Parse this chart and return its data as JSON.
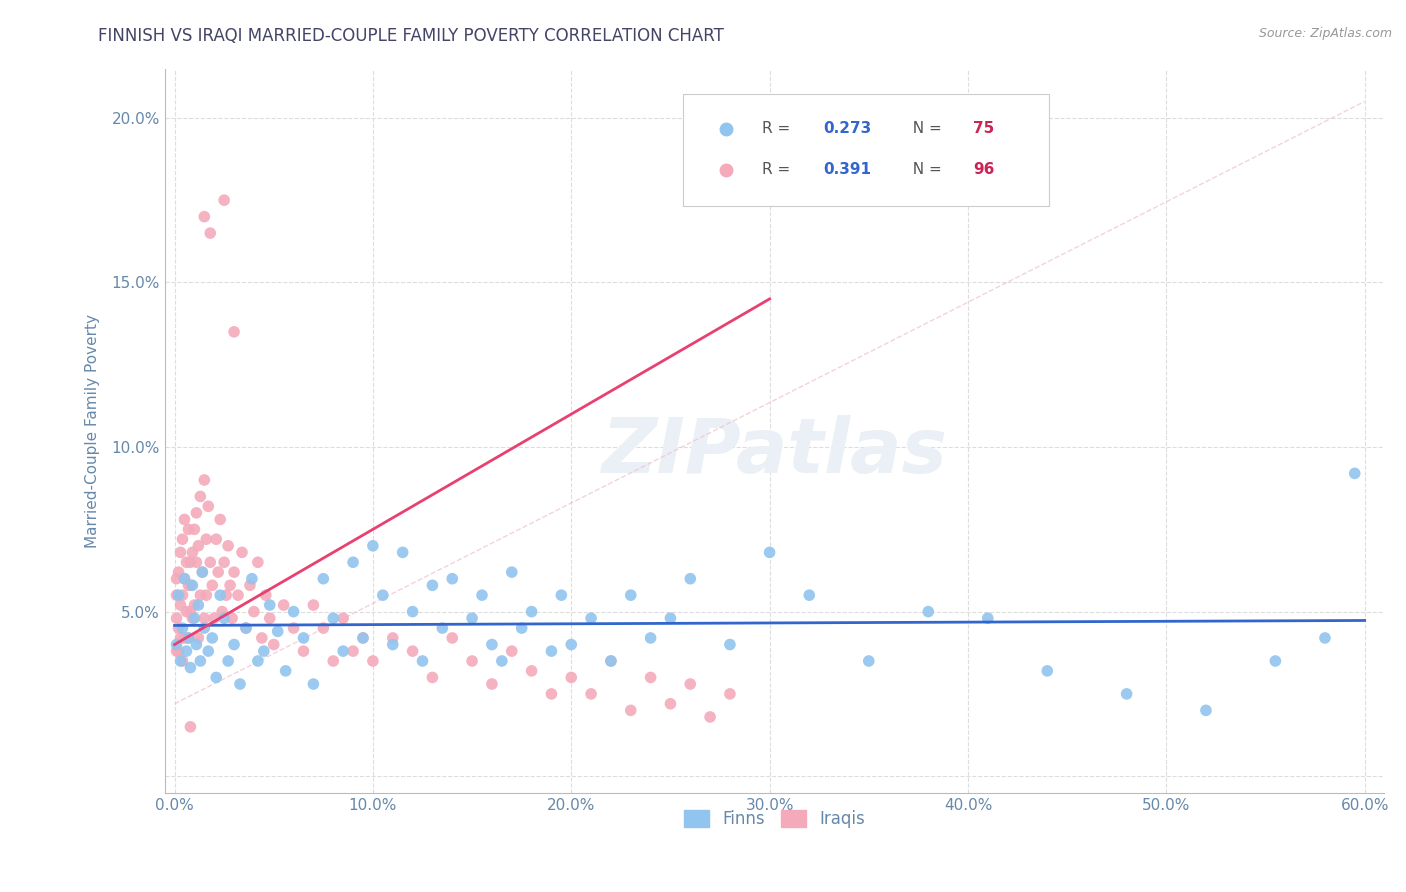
{
  "title": "FINNISH VS IRAQI MARRIED-COUPLE FAMILY POVERTY CORRELATION CHART",
  "source": "Source: ZipAtlas.com",
  "ylabel": "Married-Couple Family Poverty",
  "xlim": [
    -0.005,
    0.61
  ],
  "ylim": [
    -0.005,
    0.215
  ],
  "xticks": [
    0.0,
    0.1,
    0.2,
    0.3,
    0.4,
    0.5,
    0.6
  ],
  "xticklabels": [
    "0.0%",
    "10.0%",
    "20.0%",
    "30.0%",
    "40.0%",
    "50.0%",
    "60.0%"
  ],
  "yticks": [
    0.0,
    0.05,
    0.1,
    0.15,
    0.2
  ],
  "yticklabels": [
    "",
    "5.0%",
    "10.0%",
    "15.0%",
    "20.0%"
  ],
  "finns_color": "#91C4EE",
  "iraqis_color": "#F4AABB",
  "finns_R": 0.273,
  "finns_N": 75,
  "iraqis_R": 0.391,
  "iraqis_N": 96,
  "finns_line_color": "#3366CC",
  "iraqis_line_color": "#E84070",
  "dashed_color": "#EEC0CC",
  "watermark": "ZIPatlas",
  "background_color": "#FFFFFF",
  "grid_color": "#DDDDDD",
  "title_color": "#444466",
  "tick_color": "#6688AA",
  "ylabel_color": "#6688AA",
  "legend_R_color": "#3366CC",
  "legend_N_color": "#CC2255",
  "finns_x": [
    0.001,
    0.002,
    0.003,
    0.004,
    0.005,
    0.006,
    0.007,
    0.008,
    0.009,
    0.01,
    0.011,
    0.012,
    0.013,
    0.014,
    0.015,
    0.017,
    0.019,
    0.021,
    0.023,
    0.025,
    0.027,
    0.03,
    0.033,
    0.036,
    0.039,
    0.042,
    0.045,
    0.048,
    0.052,
    0.056,
    0.06,
    0.065,
    0.07,
    0.075,
    0.08,
    0.085,
    0.09,
    0.095,
    0.1,
    0.105,
    0.11,
    0.115,
    0.12,
    0.125,
    0.13,
    0.135,
    0.14,
    0.15,
    0.155,
    0.16,
    0.165,
    0.17,
    0.175,
    0.18,
    0.19,
    0.195,
    0.2,
    0.21,
    0.22,
    0.23,
    0.24,
    0.25,
    0.26,
    0.28,
    0.3,
    0.32,
    0.35,
    0.38,
    0.41,
    0.44,
    0.48,
    0.52,
    0.555,
    0.58,
    0.595
  ],
  "finns_y": [
    0.04,
    0.055,
    0.035,
    0.045,
    0.06,
    0.038,
    0.042,
    0.033,
    0.058,
    0.048,
    0.04,
    0.052,
    0.035,
    0.062,
    0.045,
    0.038,
    0.042,
    0.03,
    0.055,
    0.048,
    0.035,
    0.04,
    0.028,
    0.045,
    0.06,
    0.035,
    0.038,
    0.052,
    0.044,
    0.032,
    0.05,
    0.042,
    0.028,
    0.06,
    0.048,
    0.038,
    0.065,
    0.042,
    0.07,
    0.055,
    0.04,
    0.068,
    0.05,
    0.035,
    0.058,
    0.045,
    0.06,
    0.048,
    0.055,
    0.04,
    0.035,
    0.062,
    0.045,
    0.05,
    0.038,
    0.055,
    0.04,
    0.048,
    0.035,
    0.055,
    0.042,
    0.048,
    0.06,
    0.04,
    0.068,
    0.055,
    0.035,
    0.05,
    0.048,
    0.032,
    0.025,
    0.02,
    0.035,
    0.042,
    0.092
  ],
  "iraqis_x": [
    0.001,
    0.001,
    0.001,
    0.001,
    0.002,
    0.002,
    0.002,
    0.003,
    0.003,
    0.003,
    0.004,
    0.004,
    0.004,
    0.005,
    0.005,
    0.005,
    0.006,
    0.006,
    0.007,
    0.007,
    0.007,
    0.008,
    0.008,
    0.008,
    0.009,
    0.009,
    0.01,
    0.01,
    0.011,
    0.011,
    0.012,
    0.012,
    0.013,
    0.013,
    0.014,
    0.015,
    0.015,
    0.016,
    0.016,
    0.017,
    0.018,
    0.019,
    0.02,
    0.021,
    0.022,
    0.023,
    0.024,
    0.025,
    0.026,
    0.027,
    0.028,
    0.029,
    0.03,
    0.032,
    0.034,
    0.036,
    0.038,
    0.04,
    0.042,
    0.044,
    0.046,
    0.048,
    0.05,
    0.055,
    0.06,
    0.065,
    0.07,
    0.075,
    0.08,
    0.085,
    0.09,
    0.095,
    0.1,
    0.11,
    0.12,
    0.13,
    0.14,
    0.15,
    0.16,
    0.17,
    0.18,
    0.19,
    0.2,
    0.21,
    0.22,
    0.23,
    0.24,
    0.25,
    0.26,
    0.27,
    0.28,
    0.015,
    0.018,
    0.025,
    0.03,
    0.008
  ],
  "iraqis_y": [
    0.06,
    0.048,
    0.038,
    0.055,
    0.045,
    0.062,
    0.038,
    0.052,
    0.042,
    0.068,
    0.055,
    0.072,
    0.035,
    0.06,
    0.042,
    0.078,
    0.05,
    0.065,
    0.058,
    0.042,
    0.075,
    0.065,
    0.05,
    0.058,
    0.068,
    0.048,
    0.075,
    0.052,
    0.065,
    0.08,
    0.042,
    0.07,
    0.055,
    0.085,
    0.062,
    0.048,
    0.09,
    0.072,
    0.055,
    0.082,
    0.065,
    0.058,
    0.048,
    0.072,
    0.062,
    0.078,
    0.05,
    0.065,
    0.055,
    0.07,
    0.058,
    0.048,
    0.062,
    0.055,
    0.068,
    0.045,
    0.058,
    0.05,
    0.065,
    0.042,
    0.055,
    0.048,
    0.04,
    0.052,
    0.045,
    0.038,
    0.052,
    0.045,
    0.035,
    0.048,
    0.038,
    0.042,
    0.035,
    0.042,
    0.038,
    0.03,
    0.042,
    0.035,
    0.028,
    0.038,
    0.032,
    0.025,
    0.03,
    0.025,
    0.035,
    0.02,
    0.03,
    0.022,
    0.028,
    0.018,
    0.025,
    0.17,
    0.165,
    0.175,
    0.135,
    0.015
  ]
}
